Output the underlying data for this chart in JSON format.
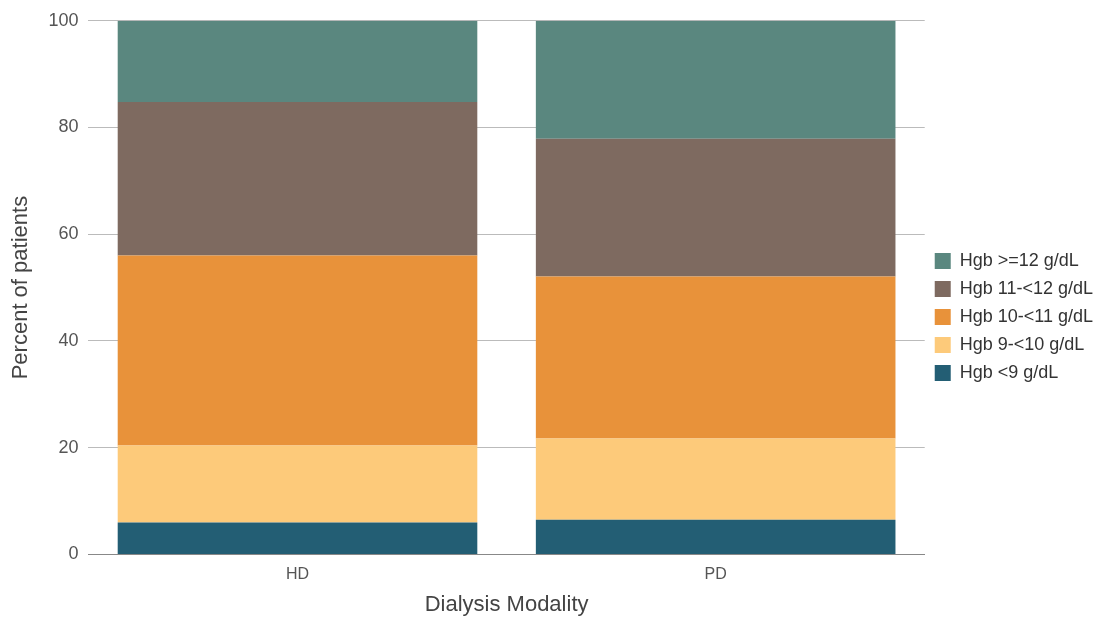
{
  "chart_data": {
    "type": "bar",
    "stacked": true,
    "xlabel": "Dialysis Modality",
    "ylabel": "Percent of patients",
    "categories": [
      "HD",
      "PD"
    ],
    "series": [
      {
        "name": "Hgb <9 g/dL",
        "color": "#235e74",
        "values": [
          6.0,
          6.5
        ]
      },
      {
        "name": "Hgb 9-<10 g/dL",
        "color": "#fdca7a",
        "values": [
          14.4,
          15.2
        ]
      },
      {
        "name": "Hgb 10-<11 g/dL",
        "color": "#e8923a",
        "values": [
          35.6,
          30.4
        ]
      },
      {
        "name": "Hgb 11-<12 g/dL",
        "color": "#7e6a60",
        "values": [
          28.8,
          25.8
        ]
      },
      {
        "name": "Hgb >=12 g/dL",
        "color": "#5a877f",
        "values": [
          15.2,
          22.1
        ]
      }
    ],
    "ylim": [
      0,
      100
    ],
    "yticks": [
      0,
      20,
      40,
      60,
      80,
      100
    ],
    "grid": "y",
    "legend": "right"
  }
}
